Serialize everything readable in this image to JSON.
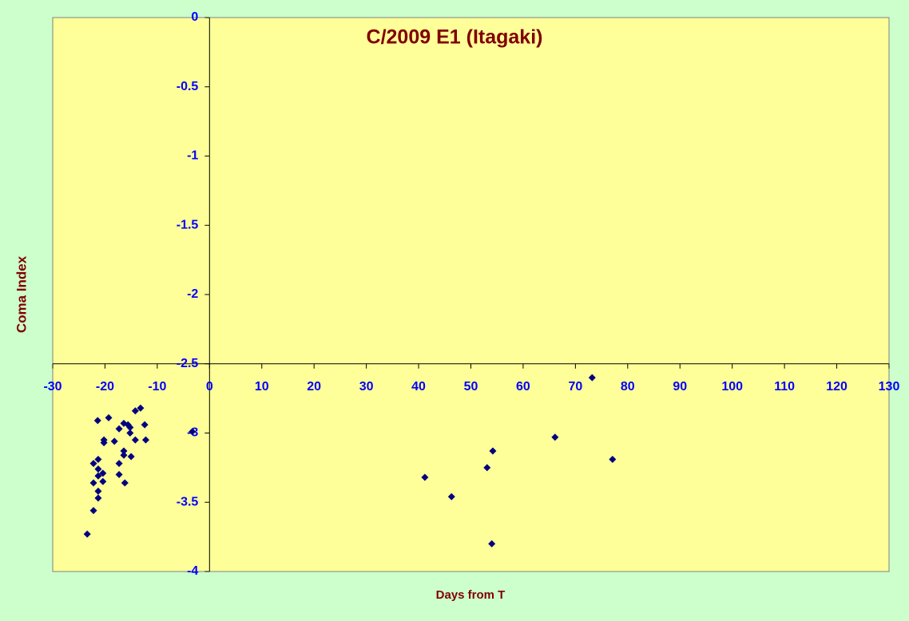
{
  "chart_data": {
    "type": "scatter",
    "title": "C/2009 E1 (Itagaki)",
    "x_label": "Days from T",
    "y_label": "Coma Index",
    "xlim": [
      -30,
      130
    ],
    "xticks": [
      -30,
      -20,
      -10,
      0,
      10,
      20,
      30,
      40,
      50,
      60,
      70,
      80,
      90,
      100,
      110,
      120,
      130
    ],
    "ylim": [
      -4,
      0
    ],
    "yticks": [
      0,
      -0.5,
      -1,
      -1.5,
      -2,
      -2.5,
      -3,
      -3.5,
      -4
    ],
    "x_axis_crosses_at_y": -2.5,
    "y_axis_crosses_at_x": 0,
    "series": [
      {
        "color": "#000080",
        "x": [
          -23.4,
          -22.2,
          -22.2,
          -22.2,
          -21.4,
          -21.3,
          -21.3,
          -21.3,
          -21.3,
          -21.3,
          -20.4,
          -20.4,
          -20.2,
          -20.2,
          -19.3,
          -18.2,
          -17.3,
          -17.3,
          -17.3,
          -16.4,
          -16.4,
          -16.4,
          -16.2,
          -15.6,
          -15.2,
          -15.2,
          -15.0,
          -14.2,
          -14.2,
          -13.2,
          -12.4,
          -12.2,
          -3.3,
          41.2,
          46.3,
          53.1,
          54.2,
          54.0,
          66.1,
          73.2,
          77.1
        ],
        "values": [
          -3.73,
          -3.56,
          -3.36,
          -3.22,
          -2.91,
          -3.19,
          -3.26,
          -3.31,
          -3.42,
          -3.47,
          -3.29,
          -3.35,
          -3.05,
          -3.07,
          -2.89,
          -3.06,
          -2.97,
          -3.22,
          -3.3,
          -2.93,
          -3.13,
          -3.16,
          -3.36,
          -2.94,
          -2.96,
          -3.0,
          -3.17,
          -2.84,
          -3.05,
          -2.82,
          -2.94,
          -3.05,
          -2.99,
          -3.32,
          -3.46,
          -3.25,
          -3.13,
          -3.8,
          -3.03,
          -2.6,
          -3.19
        ]
      }
    ]
  }
}
